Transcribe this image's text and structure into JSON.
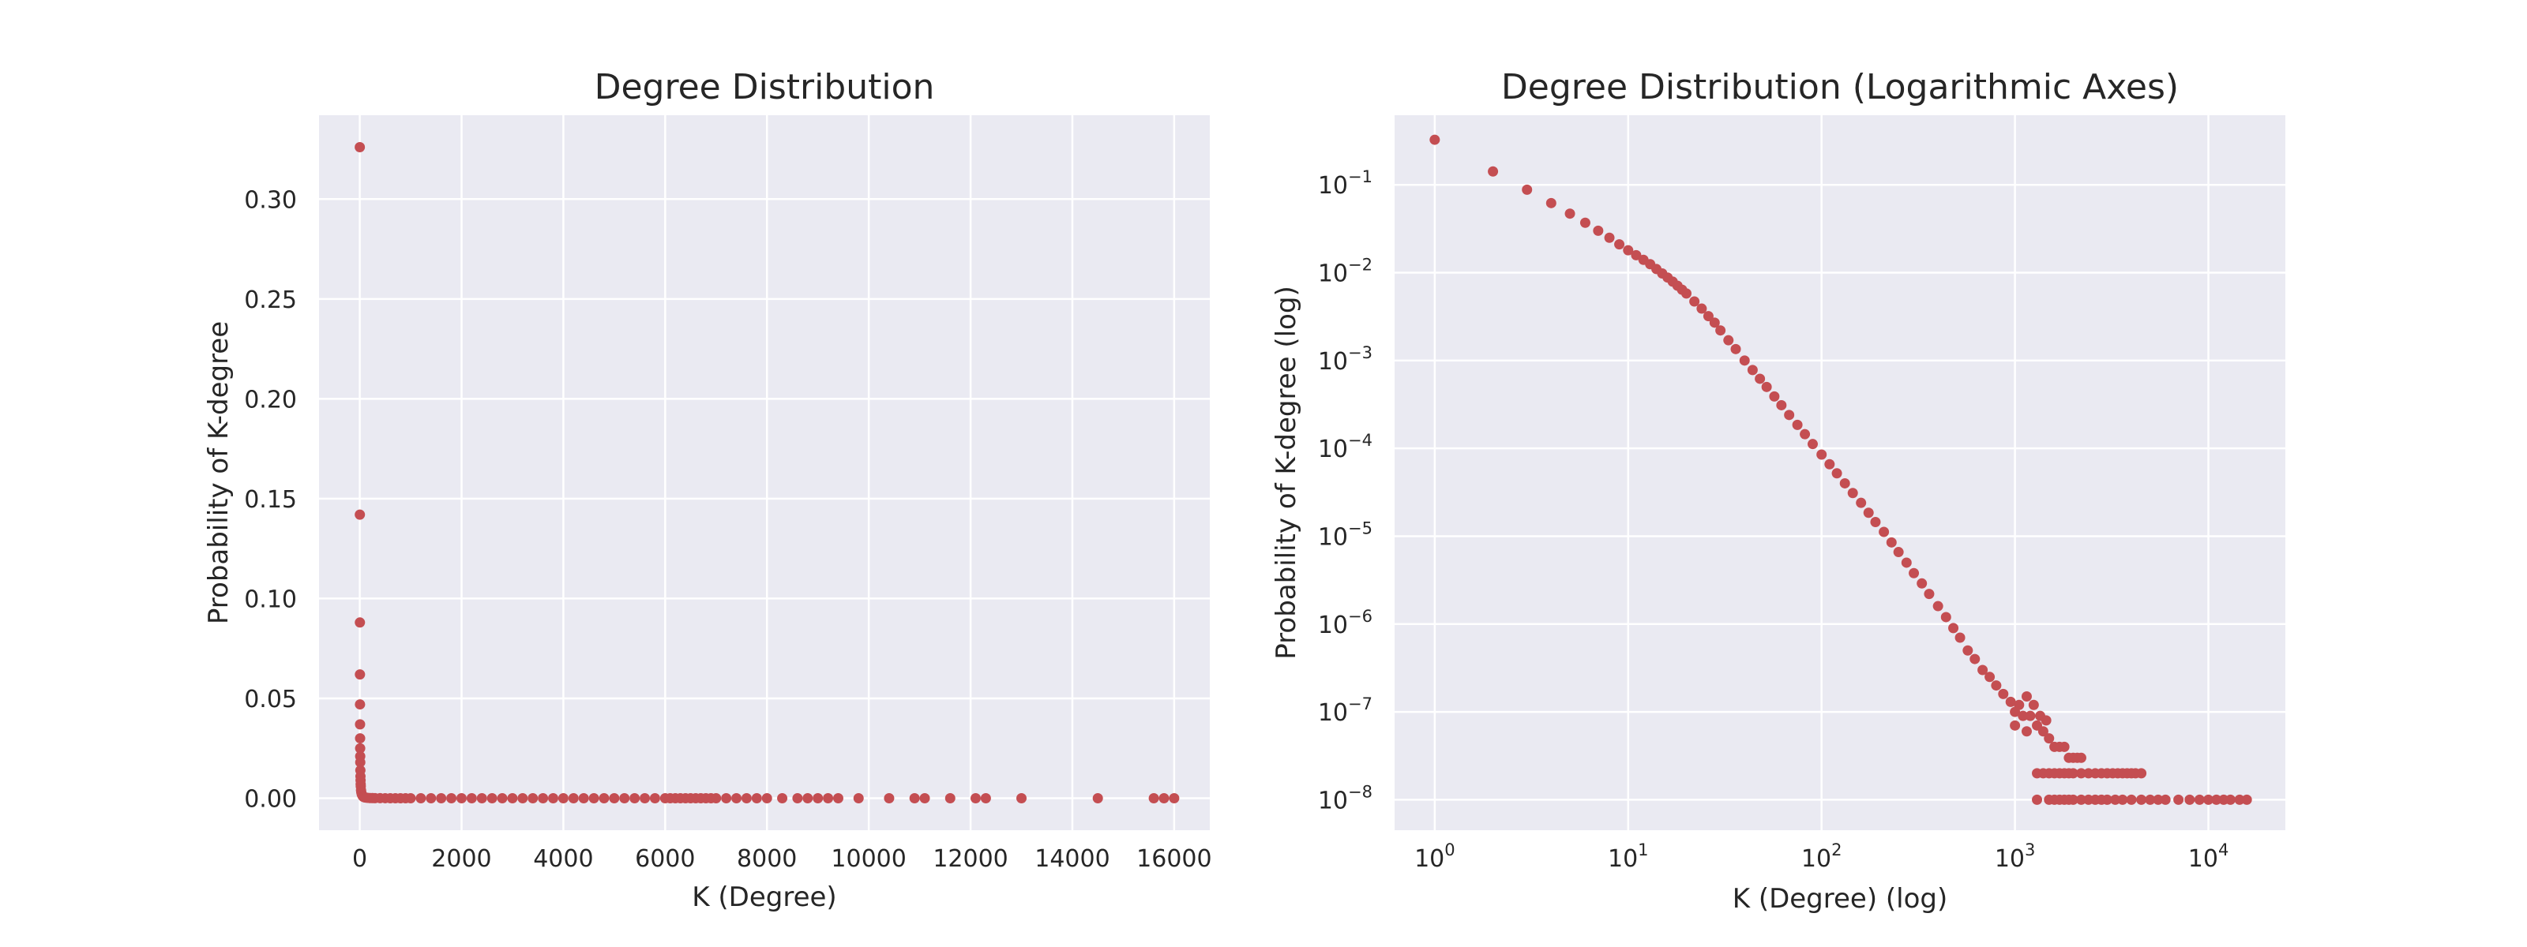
{
  "colors": {
    "marker": "#c44e52",
    "plot_bg": "#eaeaf2",
    "grid": "#ffffff",
    "text": "#262626"
  },
  "chart_data": [
    {
      "type": "scatter",
      "title": "Degree Distribution",
      "xlabel": "K (Degree)",
      "ylabel": "Probability of K-degree",
      "xscale": "linear",
      "yscale": "linear",
      "xlim": [
        -800,
        16700
      ],
      "ylim": [
        -0.016,
        0.342
      ],
      "xticks": [
        0,
        2000,
        4000,
        6000,
        8000,
        10000,
        12000,
        14000,
        16000
      ],
      "xtick_labels": [
        "0",
        "2000",
        "4000",
        "6000",
        "8000",
        "10000",
        "12000",
        "14000",
        "16000"
      ],
      "yticks": [
        0.0,
        0.05,
        0.1,
        0.15,
        0.2,
        0.25,
        0.3
      ],
      "ytick_labels": [
        "0.00",
        "0.05",
        "0.10",
        "0.15",
        "0.20",
        "0.25",
        "0.30"
      ],
      "grid": true,
      "legend": false,
      "series": [
        {
          "x": [
            1,
            2,
            3,
            4,
            5,
            6,
            7,
            8,
            9,
            10,
            12,
            14,
            16,
            18,
            20,
            25,
            30,
            40,
            50,
            60,
            70,
            80,
            100,
            120,
            150,
            200,
            250,
            300,
            400,
            500,
            600,
            700,
            800,
            900,
            1000,
            1200,
            1400,
            1600,
            1800,
            2000,
            2200,
            2400,
            2600,
            2800,
            3000,
            3200,
            3400,
            3600,
            3800,
            4000,
            4200,
            4400,
            4600,
            4800,
            5000,
            5200,
            5400,
            5600,
            5800,
            6000,
            6100,
            6200,
            6300,
            6400,
            6500,
            6600,
            6700,
            6800,
            6900,
            7000,
            7200,
            7400,
            7600,
            7800,
            8000,
            8300,
            8600,
            8800,
            9000,
            9200,
            9400,
            9800,
            10400,
            10900,
            11100,
            11600,
            12100,
            12300,
            13000,
            14500,
            15600,
            15800,
            16000
          ],
          "y": [
            0.326,
            0.142,
            0.088,
            0.062,
            0.047,
            0.037,
            0.03,
            0.025,
            0.021,
            0.018,
            0.014,
            0.011,
            0.009,
            0.007,
            0.006,
            0.004,
            0.003,
            0.002,
            0.0015,
            0.001,
            0.0008,
            0.0006,
            0.0004,
            0.0003,
            0.0002,
            0.0001,
            8e-05,
            5e-05,
            3e-05,
            2e-05,
            1e-05,
            1e-05,
            5e-06,
            5e-06,
            2e-06,
            1e-06,
            1e-06,
            0,
            0,
            0,
            0,
            0,
            0,
            0,
            0,
            0,
            0,
            0,
            0,
            0,
            0,
            0,
            0,
            0,
            0,
            0,
            0,
            0,
            0,
            0,
            0,
            0,
            0,
            0,
            0,
            0,
            0,
            0,
            0,
            0,
            0,
            0,
            0,
            0,
            0,
            0,
            0,
            0,
            0,
            0,
            0,
            0,
            0,
            0,
            0,
            0,
            0,
            0,
            0,
            0,
            0,
            0,
            0
          ]
        }
      ]
    },
    {
      "type": "scatter",
      "title": "Degree Distribution (Logarithmic Axes)",
      "xlabel": "K (Degree) (log)",
      "ylabel": "Probability of K-degree (log)",
      "xscale": "log",
      "yscale": "log",
      "xlim": [
        0.62,
        25000
      ],
      "ylim": [
        4.5e-09,
        0.62
      ],
      "xticks": [
        1,
        10,
        100,
        1000,
        10000
      ],
      "xtick_labels": [
        [
          "10",
          "0"
        ],
        [
          "10",
          "1"
        ],
        [
          "10",
          "2"
        ],
        [
          "10",
          "3"
        ],
        [
          "10",
          "4"
        ]
      ],
      "yticks": [
        1e-08,
        1e-07,
        1e-06,
        1e-05,
        0.0001,
        0.001,
        0.01,
        0.1
      ],
      "ytick_labels": [
        [
          "10",
          "−8"
        ],
        [
          "10",
          "−7"
        ],
        [
          "10",
          "−6"
        ],
        [
          "10",
          "−5"
        ],
        [
          "10",
          "−4"
        ],
        [
          "10",
          "−3"
        ],
        [
          "10",
          "−2"
        ],
        [
          "10",
          "−1"
        ]
      ],
      "grid": true,
      "legend": false,
      "series": [
        {
          "x": [
            1,
            2,
            3,
            4,
            5,
            6,
            7,
            8,
            9,
            10,
            11,
            12,
            13,
            14,
            15,
            16,
            17,
            18,
            19,
            20,
            22,
            24,
            26,
            28,
            30,
            33,
            36,
            40,
            44,
            48,
            52,
            57,
            62,
            68,
            75,
            82,
            90,
            100,
            110,
            120,
            132,
            145,
            160,
            175,
            190,
            210,
            230,
            250,
            275,
            300,
            330,
            360,
            400,
            440,
            480,
            520,
            570,
            620,
            680,
            740,
            800,
            870,
            950,
            1000,
            1000,
            1050,
            1100,
            1150,
            1200,
            1300,
            1400,
            1500,
            1600,
            1700,
            1800,
            1900,
            2000,
            2100,
            2200,
            1300,
            1400,
            1500,
            1600,
            1700,
            1800,
            1900,
            2000,
            2200,
            2400,
            2600,
            2800,
            3000,
            3200,
            3400,
            3600,
            3800,
            4000,
            4200,
            4500,
            1300,
            1500,
            1600,
            1700,
            1800,
            1900,
            2000,
            2200,
            2400,
            2600,
            2800,
            3000,
            3300,
            3600,
            4000,
            4500,
            5000,
            5500,
            6000,
            7000,
            8000,
            9000,
            10000,
            11000,
            12000,
            13000,
            14500,
            15800,
            1150,
            1250,
            1350,
            1450
          ],
          "y": [
            0.326,
            0.142,
            0.088,
            0.062,
            0.047,
            0.037,
            0.03,
            0.025,
            0.021,
            0.018,
            0.0158,
            0.014,
            0.0125,
            0.011,
            0.0098,
            0.0088,
            0.0079,
            0.0071,
            0.0064,
            0.0058,
            0.0047,
            0.0039,
            0.0032,
            0.0027,
            0.0022,
            0.0017,
            0.00135,
            0.001,
            0.00078,
            0.00062,
            0.0005,
            0.00039,
            0.00031,
            0.00024,
            0.000185,
            0.000145,
            0.000112,
            8.5e-05,
            6.6e-05,
            5.2e-05,
            4e-05,
            3.1e-05,
            2.4e-05,
            1.85e-05,
            1.45e-05,
            1.12e-05,
            8.5e-06,
            6.6e-06,
            5e-06,
            3.8e-06,
            2.9e-06,
            2.2e-06,
            1.6e-06,
            1.2e-06,
            9e-07,
            7e-07,
            5e-07,
            4e-07,
            3e-07,
            2.5e-07,
            2e-07,
            1.6e-07,
            1.3e-07,
            1e-07,
            7e-08,
            1.2e-07,
            9e-08,
            6e-08,
            9e-08,
            7e-08,
            6e-08,
            5e-08,
            4e-08,
            4e-08,
            4e-08,
            3e-08,
            3e-08,
            3e-08,
            3e-08,
            2e-08,
            2e-08,
            2e-08,
            2e-08,
            2e-08,
            2e-08,
            2e-08,
            2e-08,
            2e-08,
            2e-08,
            2e-08,
            2e-08,
            2e-08,
            2e-08,
            2e-08,
            2e-08,
            2e-08,
            2e-08,
            2e-08,
            2e-08,
            1e-08,
            1e-08,
            1e-08,
            1e-08,
            1e-08,
            1e-08,
            1e-08,
            1e-08,
            1e-08,
            1e-08,
            1e-08,
            1e-08,
            1e-08,
            1e-08,
            1e-08,
            1e-08,
            1e-08,
            1e-08,
            1e-08,
            1e-08,
            1e-08,
            1e-08,
            1e-08,
            1e-08,
            1e-08,
            1e-08,
            1e-08,
            1e-08,
            1.5e-07,
            1.2e-07,
            9e-08,
            8e-08
          ]
        }
      ]
    }
  ]
}
